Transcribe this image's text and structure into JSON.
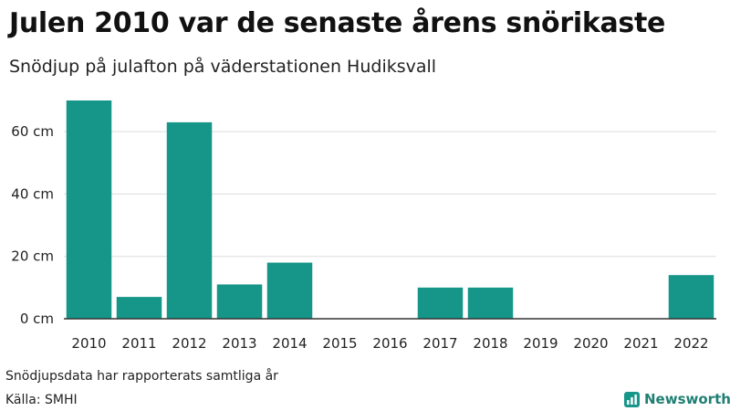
{
  "title": "Julen 2010 var de senaste årens snörikaste",
  "subtitle": "Snödjup på julafton på väderstationen Hudiksvall",
  "footer": {
    "note": "Snödjupsdata har rapporterats samtliga år",
    "source": "Källa: SMHI",
    "brand": "Newsworthy"
  },
  "colors": {
    "bar": "#159688",
    "grid": "#dddddd",
    "axis": "#333333",
    "brand": "#1f7f74"
  },
  "chart_data": {
    "type": "bar",
    "categories": [
      "2010",
      "2011",
      "2012",
      "2013",
      "2014",
      "2015",
      "2016",
      "2017",
      "2018",
      "2019",
      "2020",
      "2021",
      "2022"
    ],
    "values": [
      70,
      7,
      63,
      11,
      18,
      0,
      0,
      10,
      10,
      0,
      0,
      0,
      14
    ],
    "yticks": [
      0,
      20,
      40,
      60
    ],
    "ytick_labels": [
      "0 cm",
      "20 cm",
      "40 cm",
      "60 cm"
    ],
    "ylim": [
      0,
      70
    ],
    "grid": true,
    "unit": "cm"
  }
}
